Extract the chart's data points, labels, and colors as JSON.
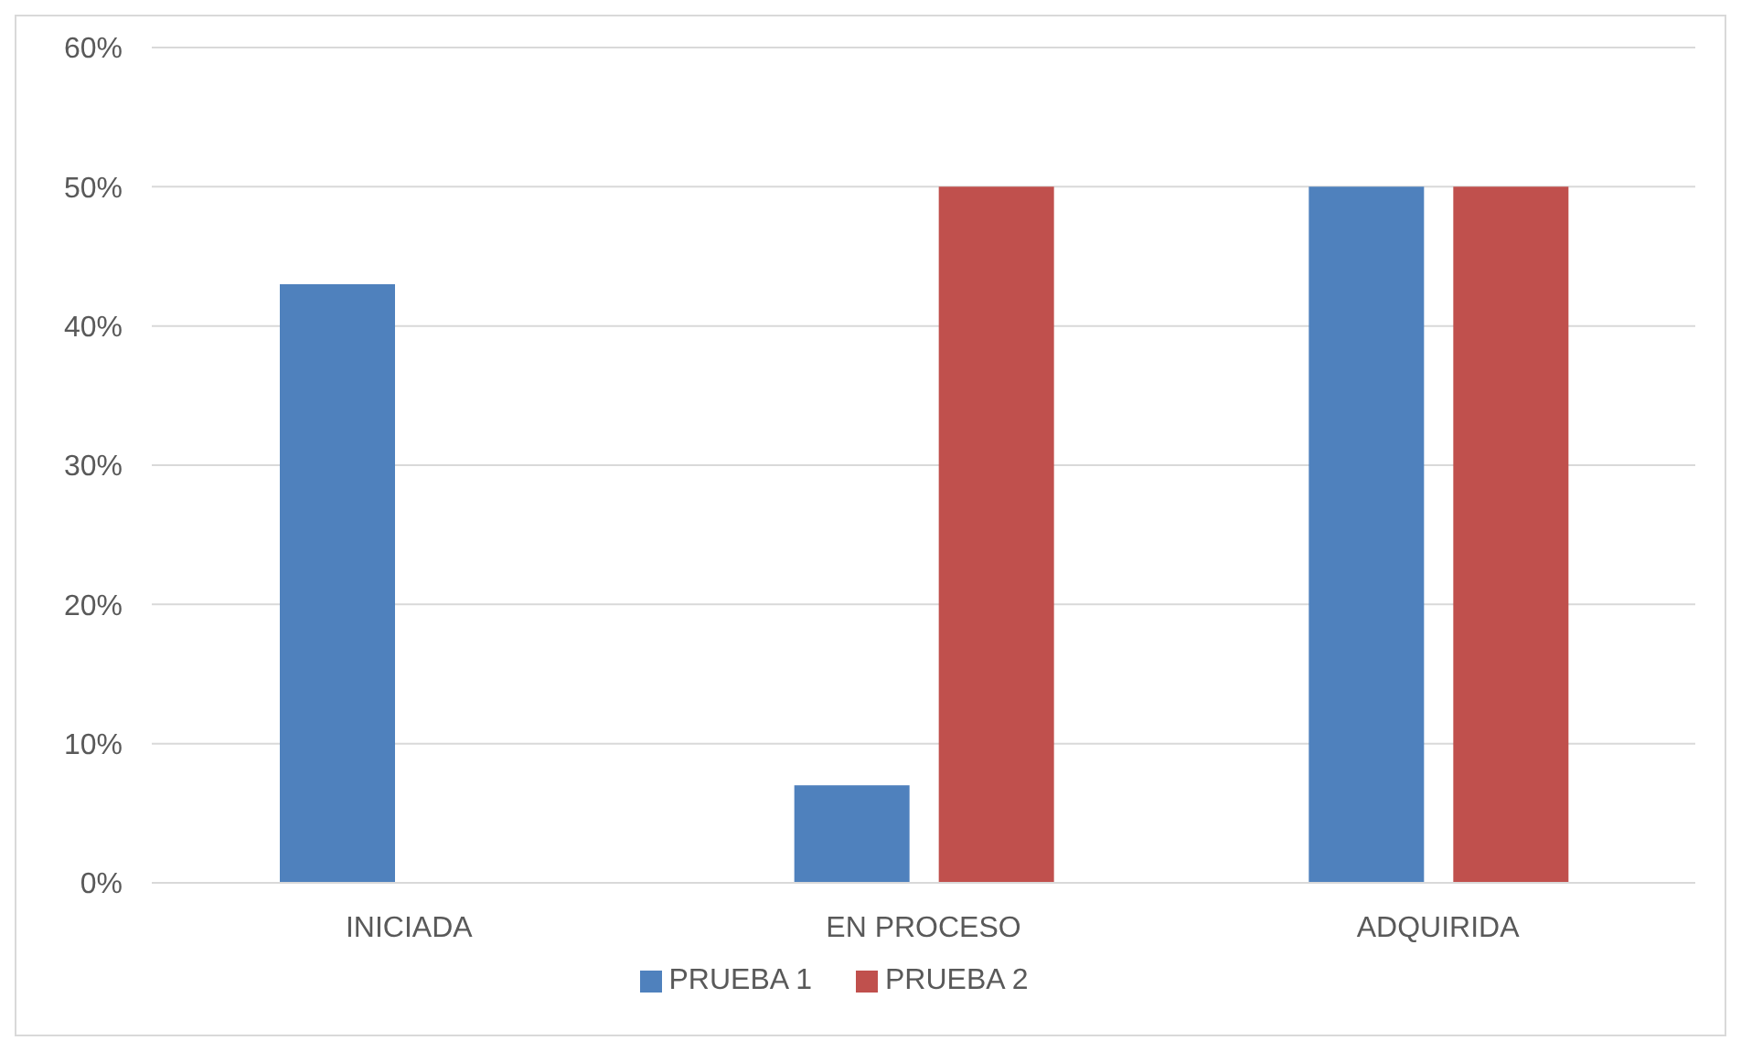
{
  "chart_data": {
    "type": "bar",
    "categories": [
      "INICIADA",
      "EN PROCESO",
      "ADQUIRIDA"
    ],
    "series": [
      {
        "name": "PRUEBA 1",
        "color": "#4f81bd",
        "values": [
          43,
          7,
          50
        ]
      },
      {
        "name": "PRUEBA 2",
        "color": "#c0504d",
        "values": [
          0,
          50,
          50
        ]
      }
    ],
    "ylim": [
      0,
      60
    ],
    "yticks": [
      {
        "value": 0,
        "label": "0%"
      },
      {
        "value": 10,
        "label": "10%"
      },
      {
        "value": 20,
        "label": "20%"
      },
      {
        "value": 30,
        "label": "30%"
      },
      {
        "value": 40,
        "label": "40%"
      },
      {
        "value": 50,
        "label": "50%"
      },
      {
        "value": 60,
        "label": "60%"
      }
    ],
    "grid": "y",
    "legend": "bottom"
  }
}
